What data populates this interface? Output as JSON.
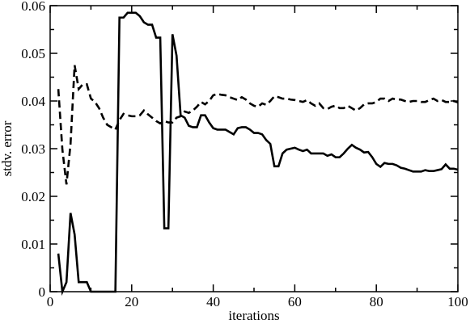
{
  "chart_data": {
    "type": "line",
    "xlabel": "iterations",
    "ylabel": "stdv. error",
    "xlim": [
      0,
      100
    ],
    "ylim": [
      0,
      0.06
    ],
    "x_ticks": [
      0,
      20,
      40,
      60,
      80,
      100
    ],
    "x_tick_labels": [
      "0",
      "20",
      "40",
      "60",
      "80",
      "100"
    ],
    "y_ticks": [
      0,
      0.01,
      0.02,
      0.03,
      0.04,
      0.05,
      0.06
    ],
    "y_tick_labels": [
      "0",
      "0.01",
      "0.02",
      "0.03",
      "0.04",
      "0.05",
      "0.06"
    ],
    "grid": false,
    "legend": "none",
    "series": [
      {
        "style": "solid",
        "color": "#000000",
        "points": [
          [
            2,
            0.008
          ],
          [
            3,
            0.0
          ],
          [
            4,
            0.002
          ],
          [
            5,
            0.0165
          ],
          [
            6,
            0.012
          ],
          [
            7,
            0.002
          ],
          [
            8,
            0.002
          ],
          [
            9,
            0.002
          ],
          [
            10,
            0.0
          ],
          [
            11,
            0.0
          ],
          [
            12,
            0.0
          ],
          [
            13,
            0.0
          ],
          [
            14,
            0.0
          ],
          [
            15,
            0.0
          ],
          [
            16,
            0.0
          ],
          [
            17,
            0.0575
          ],
          [
            18,
            0.0575
          ],
          [
            19,
            0.0585
          ],
          [
            20,
            0.0585
          ],
          [
            21,
            0.0585
          ],
          [
            22,
            0.0578
          ],
          [
            23,
            0.0565
          ],
          [
            24,
            0.056
          ],
          [
            25,
            0.056
          ],
          [
            26,
            0.0533
          ],
          [
            27,
            0.0533
          ],
          [
            28,
            0.0133
          ],
          [
            29,
            0.0133
          ],
          [
            30,
            0.054
          ],
          [
            31,
            0.0495
          ],
          [
            32,
            0.037
          ],
          [
            33,
            0.0365
          ],
          [
            34,
            0.0348
          ],
          [
            35,
            0.0345
          ],
          [
            36,
            0.0345
          ],
          [
            37,
            0.037
          ],
          [
            38,
            0.037
          ],
          [
            39,
            0.0355
          ],
          [
            40,
            0.0343
          ],
          [
            41,
            0.034
          ],
          [
            42,
            0.034
          ],
          [
            43,
            0.034
          ],
          [
            44,
            0.0335
          ],
          [
            45,
            0.033
          ],
          [
            46,
            0.0343
          ],
          [
            47,
            0.0345
          ],
          [
            48,
            0.0345
          ],
          [
            49,
            0.034
          ],
          [
            50,
            0.0333
          ],
          [
            51,
            0.0333
          ],
          [
            52,
            0.033
          ],
          [
            53,
            0.0318
          ],
          [
            54,
            0.031
          ],
          [
            55,
            0.0263
          ],
          [
            56,
            0.0263
          ],
          [
            57,
            0.029
          ],
          [
            58,
            0.0298
          ],
          [
            59,
            0.03
          ],
          [
            60,
            0.0302
          ],
          [
            61,
            0.0298
          ],
          [
            62,
            0.0295
          ],
          [
            63,
            0.0298
          ],
          [
            64,
            0.029
          ],
          [
            65,
            0.029
          ],
          [
            66,
            0.029
          ],
          [
            67,
            0.029
          ],
          [
            68,
            0.0285
          ],
          [
            69,
            0.0288
          ],
          [
            70,
            0.0282
          ],
          [
            71,
            0.0282
          ],
          [
            72,
            0.029
          ],
          [
            73,
            0.03
          ],
          [
            74,
            0.0308
          ],
          [
            75,
            0.0302
          ],
          [
            76,
            0.0298
          ],
          [
            77,
            0.0292
          ],
          [
            78,
            0.0293
          ],
          [
            79,
            0.0282
          ],
          [
            80,
            0.0268
          ],
          [
            81,
            0.0262
          ],
          [
            82,
            0.027
          ],
          [
            83,
            0.0268
          ],
          [
            84,
            0.0268
          ],
          [
            85,
            0.0265
          ],
          [
            86,
            0.026
          ],
          [
            87,
            0.0258
          ],
          [
            88,
            0.0255
          ],
          [
            89,
            0.0252
          ],
          [
            90,
            0.0252
          ],
          [
            91,
            0.0252
          ],
          [
            92,
            0.0255
          ],
          [
            93,
            0.0253
          ],
          [
            94,
            0.0253
          ],
          [
            95,
            0.0255
          ],
          [
            96,
            0.0257
          ],
          [
            97,
            0.0267
          ],
          [
            98,
            0.0258
          ],
          [
            99,
            0.0258
          ],
          [
            100,
            0.0256
          ]
        ]
      },
      {
        "style": "dashed",
        "color": "#000000",
        "points": [
          [
            2,
            0.0425
          ],
          [
            3,
            0.0298
          ],
          [
            4,
            0.0225
          ],
          [
            5,
            0.031
          ],
          [
            6,
            0.0475
          ],
          [
            7,
            0.0425
          ],
          [
            8,
            0.0435
          ],
          [
            9,
            0.0435
          ],
          [
            10,
            0.0405
          ],
          [
            11,
            0.0398
          ],
          [
            12,
            0.0385
          ],
          [
            13,
            0.0365
          ],
          [
            14,
            0.035
          ],
          [
            15,
            0.0345
          ],
          [
            16,
            0.034
          ],
          [
            17,
            0.036
          ],
          [
            18,
            0.0373
          ],
          [
            19,
            0.037
          ],
          [
            20,
            0.0368
          ],
          [
            21,
            0.0368
          ],
          [
            22,
            0.037
          ],
          [
            23,
            0.038
          ],
          [
            24,
            0.0372
          ],
          [
            25,
            0.0365
          ],
          [
            26,
            0.0358
          ],
          [
            27,
            0.0353
          ],
          [
            28,
            0.0358
          ],
          [
            29,
            0.0355
          ],
          [
            30,
            0.0355
          ],
          [
            31,
            0.0365
          ],
          [
            32,
            0.0368
          ],
          [
            33,
            0.0378
          ],
          [
            34,
            0.0375
          ],
          [
            35,
            0.038
          ],
          [
            36,
            0.0388
          ],
          [
            37,
            0.0398
          ],
          [
            38,
            0.0393
          ],
          [
            39,
            0.04
          ],
          [
            40,
            0.0412
          ],
          [
            41,
            0.0415
          ],
          [
            42,
            0.0413
          ],
          [
            43,
            0.0412
          ],
          [
            44,
            0.0408
          ],
          [
            45,
            0.0405
          ],
          [
            46,
            0.0402
          ],
          [
            47,
            0.0408
          ],
          [
            48,
            0.0403
          ],
          [
            49,
            0.0395
          ],
          [
            50,
            0.039
          ],
          [
            51,
            0.0388
          ],
          [
            52,
            0.0395
          ],
          [
            53,
            0.0392
          ],
          [
            54,
            0.04
          ],
          [
            55,
            0.041
          ],
          [
            56,
            0.0408
          ],
          [
            57,
            0.0405
          ],
          [
            58,
            0.0405
          ],
          [
            59,
            0.0403
          ],
          [
            60,
            0.0402
          ],
          [
            61,
            0.04
          ],
          [
            62,
            0.0398
          ],
          [
            63,
            0.0402
          ],
          [
            64,
            0.0395
          ],
          [
            65,
            0.039
          ],
          [
            66,
            0.0395
          ],
          [
            67,
            0.0385
          ],
          [
            68,
            0.0383
          ],
          [
            69,
            0.0388
          ],
          [
            70,
            0.039
          ],
          [
            71,
            0.0385
          ],
          [
            72,
            0.0385
          ],
          [
            73,
            0.039
          ],
          [
            74,
            0.0385
          ],
          [
            75,
            0.038
          ],
          [
            76,
            0.0385
          ],
          [
            77,
            0.0393
          ],
          [
            78,
            0.0395
          ],
          [
            79,
            0.0395
          ],
          [
            80,
            0.0398
          ],
          [
            81,
            0.0405
          ],
          [
            82,
            0.0405
          ],
          [
            83,
            0.04
          ],
          [
            84,
            0.0405
          ],
          [
            85,
            0.0403
          ],
          [
            86,
            0.0403
          ],
          [
            87,
            0.04
          ],
          [
            88,
            0.0398
          ],
          [
            89,
            0.04
          ],
          [
            90,
            0.04
          ],
          [
            91,
            0.0398
          ],
          [
            92,
            0.0398
          ],
          [
            93,
            0.0402
          ],
          [
            94,
            0.0405
          ],
          [
            95,
            0.04
          ],
          [
            96,
            0.0402
          ],
          [
            97,
            0.0398
          ],
          [
            98,
            0.0398
          ],
          [
            99,
            0.04
          ],
          [
            100,
            0.0397
          ]
        ]
      }
    ]
  }
}
